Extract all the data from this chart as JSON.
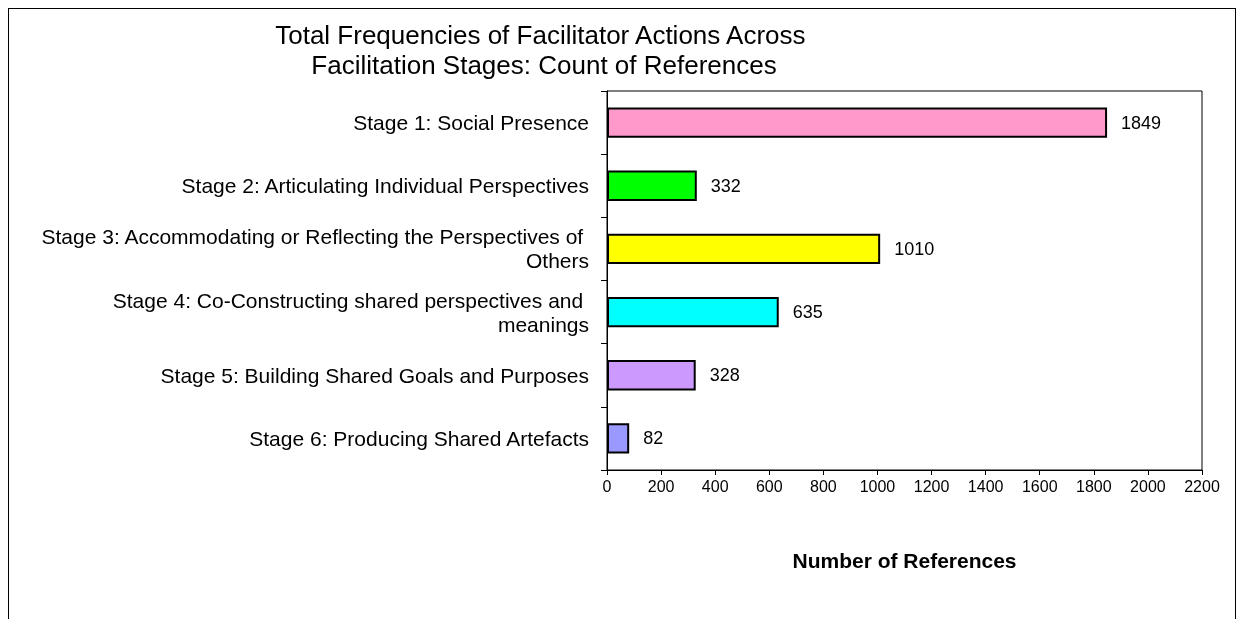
{
  "chart_data": {
    "type": "bar",
    "orientation": "horizontal",
    "title": "Total Frequencies of Facilitator Actions Across Facilitation Stages: Count of References",
    "xlabel": "Number of References",
    "categories": [
      "Stage 1: Social Presence",
      "Stage 2: Articulating Individual Perspectives",
      "Stage 3: Accommodating or Reflecting the Perspectives of Others",
      "Stage 4: Co-Constructing shared perspectives and meanings",
      "Stage 5: Building Shared Goals and Purposes",
      "Stage 6: Producing Shared Artefacts"
    ],
    "values": [
      1849,
      332,
      1010,
      635,
      328,
      82
    ],
    "colors": [
      "#ff99cc",
      "#00ff00",
      "#ffff00",
      "#00ffff",
      "#cc99ff",
      "#9999ff"
    ],
    "xlim": [
      0,
      2200
    ],
    "xticks": [
      0,
      200,
      400,
      600,
      800,
      1000,
      1200,
      1400,
      1600,
      1800,
      2000,
      2200
    ],
    "data_labels": true,
    "grid": false
  }
}
